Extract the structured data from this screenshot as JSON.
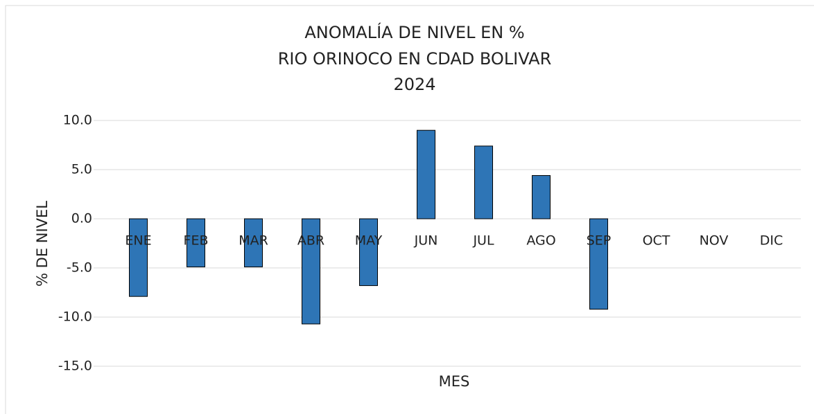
{
  "chart_data": {
    "type": "bar",
    "title": [
      "ANOMALÍA DE NIVEL EN %",
      "RIO ORINOCO EN CDAD BOLIVAR",
      "2024"
    ],
    "x_label": "MES",
    "y_label": "% DE NIVEL",
    "categories": [
      "ENE",
      "FEB",
      "MAR",
      "ABR",
      "MAY",
      "JUN",
      "JUL",
      "AGO",
      "SEP",
      "OCT",
      "NOV",
      "DIC"
    ],
    "values": [
      -7.9,
      -4.9,
      -4.9,
      -10.7,
      -6.8,
      9.0,
      7.4,
      4.4,
      -9.2,
      null,
      null,
      null
    ],
    "color": "#2e75b6",
    "ylim": [
      -15,
      10
    ],
    "yticks": [
      {
        "value": 10,
        "label": "10.0"
      },
      {
        "value": 5,
        "label": "5.0"
      },
      {
        "value": 0,
        "label": "0.0"
      },
      {
        "value": -5,
        "label": "-5.0"
      },
      {
        "value": -10,
        "label": "-10.0"
      },
      {
        "value": -15,
        "label": "-15.0"
      }
    ],
    "grid": true
  }
}
